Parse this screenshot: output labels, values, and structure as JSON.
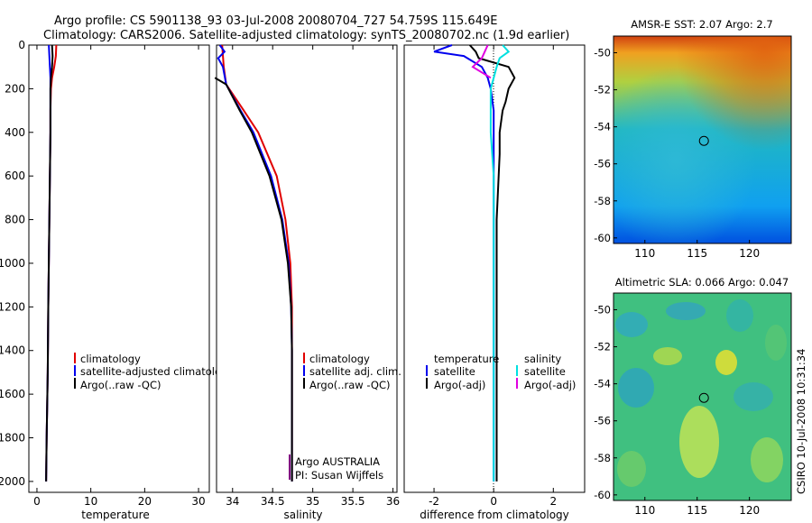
{
  "title_line1": "Argo profile: CS 5901138_93 03-Jul-2008 20080704_727 54.759S 115.649E",
  "title_line2": "Climatology: CARS2006. Satellite-adjusted climatology: synTS_20080702.nc (1.9d earlier)",
  "side_label": "CSIRO 10-Jul-2008 10:31:34",
  "colors": {
    "climatology": "#e00000",
    "satellite": "#0000ee",
    "argo": "#000000",
    "sal_satellite": "#00e0e0",
    "sal_argo": "#e000e0",
    "credit": "#800080"
  },
  "chart_data": [
    {
      "id": "temperature",
      "type": "line",
      "xlabel": "temperature",
      "ylabel": "",
      "xlim": [
        -1.5,
        32
      ],
      "ylim": [
        2050,
        0
      ],
      "xticks": [
        0,
        10,
        20,
        30
      ],
      "yticks": [
        0,
        200,
        400,
        600,
        800,
        1000,
        1200,
        1400,
        1600,
        1800,
        2000
      ],
      "legend": [
        "climatology",
        "satellite-adjusted climatology",
        "Argo(..raw -QC)"
      ],
      "series": [
        {
          "name": "climatology",
          "color": "climatology",
          "depth": [
            0,
            50,
            100,
            150,
            200,
            300,
            400,
            600,
            800,
            1000,
            1200,
            1500,
            1800,
            2000
          ],
          "values": [
            3.6,
            3.5,
            3.2,
            2.8,
            2.6,
            2.5,
            2.5,
            2.4,
            2.3,
            2.2,
            2.1,
            2.0,
            1.8,
            1.7
          ]
        },
        {
          "name": "satellite",
          "color": "satellite",
          "depth": [
            0,
            50,
            100,
            150,
            200,
            300,
            400,
            600,
            800,
            1000,
            1200,
            1500,
            1800,
            2000
          ],
          "values": [
            2.2,
            2.3,
            2.4,
            2.5,
            2.5,
            2.5,
            2.5,
            2.4,
            2.3,
            2.2,
            2.1,
            2.0,
            1.8,
            1.7
          ]
        },
        {
          "name": "Argo",
          "color": "argo",
          "depth": [
            0,
            50,
            100,
            150,
            200,
            300,
            400,
            600,
            800,
            1000,
            1200,
            1500,
            1800,
            2000
          ],
          "values": [
            2.8,
            2.9,
            2.8,
            2.6,
            2.5,
            2.5,
            2.5,
            2.4,
            2.3,
            2.2,
            2.1,
            2.0,
            1.8,
            1.7
          ]
        }
      ]
    },
    {
      "id": "salinity",
      "type": "line",
      "xlabel": "salinity",
      "xlim": [
        33.8,
        36.05
      ],
      "ylim": [
        2050,
        0
      ],
      "xticks": [
        34,
        34.5,
        35,
        35.5,
        36
      ],
      "legend": [
        "climatology",
        "satellite adj. clim.",
        "Argo(..raw -QC)"
      ],
      "credit": [
        "Argo AUSTRALIA",
        "PI: Susan Wijffels"
      ],
      "series": [
        {
          "name": "climatology",
          "color": "climatology",
          "depth": [
            0,
            100,
            180,
            300,
            400,
            600,
            800,
            1000,
            1200,
            1400,
            2000
          ],
          "values": [
            33.87,
            33.89,
            33.92,
            34.14,
            34.32,
            34.55,
            34.66,
            34.72,
            34.74,
            34.74,
            34.74
          ]
        },
        {
          "name": "satellite",
          "color": "satellite",
          "depth": [
            0,
            30,
            60,
            100,
            180,
            300,
            400,
            600,
            800,
            1000,
            1200,
            1400,
            2000
          ],
          "values": [
            33.84,
            33.9,
            33.82,
            33.88,
            33.92,
            34.1,
            34.26,
            34.48,
            34.62,
            34.7,
            34.73,
            34.74,
            34.74
          ]
        },
        {
          "name": "Argo",
          "color": "argo",
          "depth": [
            150,
            180,
            300,
            400,
            600,
            800,
            1000,
            1200,
            1400,
            2000
          ],
          "values": [
            33.78,
            33.92,
            34.09,
            34.24,
            34.46,
            34.61,
            34.69,
            34.73,
            34.74,
            34.74
          ]
        }
      ]
    },
    {
      "id": "difference",
      "type": "line",
      "xlabel": "difference from climatology",
      "xlim": [
        -3,
        3.05
      ],
      "ylim": [
        2050,
        0
      ],
      "xticks": [
        -2,
        0,
        2
      ],
      "legend_temperature": [
        "temperature",
        "satellite",
        "Argo(-adj)"
      ],
      "legend_salinity": [
        "salinity",
        "satellite",
        "Argo(-adj)"
      ],
      "series": [
        {
          "name": "temperature satellite",
          "color": "satellite",
          "depth": [
            0,
            30,
            50,
            100,
            150,
            200,
            300,
            500,
            800,
            1200,
            1600,
            2000
          ],
          "values": [
            -1.4,
            -2.0,
            -1.0,
            -0.4,
            -0.2,
            -0.1,
            0.0,
            0.0,
            0.0,
            0.0,
            0.0,
            0.0
          ]
        },
        {
          "name": "temperature Argo",
          "color": "argo",
          "depth": [
            0,
            30,
            60,
            100,
            150,
            200,
            260,
            300,
            400,
            500,
            800,
            1200,
            1600,
            2000
          ],
          "values": [
            -0.8,
            -0.6,
            -0.5,
            0.5,
            0.7,
            0.5,
            0.4,
            0.3,
            0.2,
            0.2,
            0.1,
            0.1,
            0.1,
            0.1
          ]
        },
        {
          "name": "salinity satellite",
          "color": "sal_satellite",
          "depth": [
            0,
            30,
            60,
            100,
            150,
            200,
            300,
            400,
            600,
            800,
            1000,
            1200,
            1500,
            2000
          ],
          "values": [
            0.3,
            0.5,
            0.2,
            0.1,
            0.0,
            -0.1,
            -0.1,
            -0.1,
            0.0,
            0.0,
            0.0,
            0.0,
            0.0,
            0.0
          ]
        },
        {
          "name": "salinity Argo",
          "color": "sal_argo",
          "depth": [
            0,
            30,
            60,
            100,
            150
          ],
          "values": [
            -0.2,
            -0.3,
            -0.4,
            -0.7,
            -0.1
          ]
        }
      ]
    },
    {
      "id": "sst_map",
      "type": "heatmap",
      "title": "AMSR-E SST: 2.07 Argo: 2.7",
      "xlim": [
        107,
        124
      ],
      "ylim": [
        -60.3,
        -49.1
      ],
      "xticks": [
        110,
        115,
        120
      ],
      "yticks": [
        -50,
        -52,
        -54,
        -56,
        -58,
        -60
      ],
      "marker": {
        "lon": 115.649,
        "lat": -54.759
      }
    },
    {
      "id": "sla_map",
      "type": "heatmap",
      "title": "Altimetric SLA: 0.066 Argo: 0.047",
      "xlim": [
        107,
        124
      ],
      "ylim": [
        -60.3,
        -49.1
      ],
      "xticks": [
        110,
        115,
        120
      ],
      "yticks": [
        -50,
        -52,
        -54,
        -56,
        -58,
        -60
      ],
      "marker": {
        "lon": 115.649,
        "lat": -54.759
      }
    }
  ]
}
